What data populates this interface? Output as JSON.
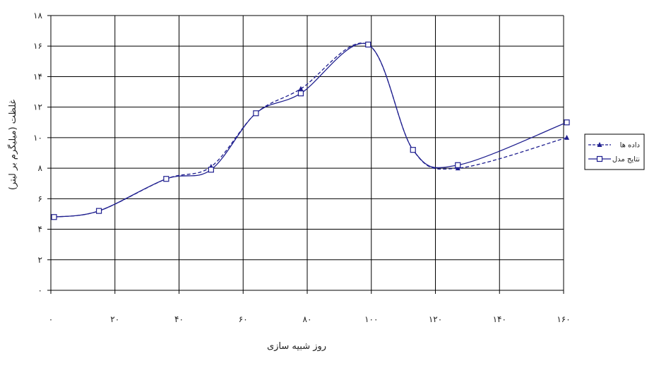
{
  "chart_data": {
    "type": "line",
    "xlabel": "روز شبیه سازی",
    "ylabel": "غلظت (میلیگرم بر لیتر)",
    "xlim": [
      0,
      160
    ],
    "ylim": [
      0,
      18
    ],
    "x_ticks": [
      "۰",
      "۲۰",
      "۴۰",
      "۶۰",
      "۸۰",
      "۱۰۰",
      "۱۲۰",
      "۱۴۰",
      "۱۶۰"
    ],
    "y_ticks": [
      "۰",
      "۲",
      "۴",
      "۶",
      "۸",
      "۱۰",
      "۱۲",
      "۱۴",
      "۱۶",
      "۱۸"
    ],
    "grid": true,
    "legend_position": "right",
    "series": [
      {
        "name": "داده ها",
        "style": "dashed",
        "marker": "triangle",
        "color": "#1f1f8f",
        "points": [
          [
            1,
            4.8
          ],
          [
            15,
            5.2
          ],
          [
            36,
            7.3
          ],
          [
            50,
            8.1
          ],
          [
            64,
            11.6
          ],
          [
            78,
            13.2
          ],
          [
            99,
            16.1
          ],
          [
            113,
            9.2
          ],
          [
            127,
            8.0
          ],
          [
            161,
            10.0
          ]
        ]
      },
      {
        "name": "نتایج مدل",
        "style": "solid",
        "marker": "square",
        "color": "#1f1f8f",
        "points": [
          [
            1,
            4.8
          ],
          [
            15,
            5.2
          ],
          [
            36,
            7.3
          ],
          [
            50,
            7.9
          ],
          [
            64,
            11.6
          ],
          [
            78,
            12.9
          ],
          [
            99,
            16.1
          ],
          [
            113,
            9.2
          ],
          [
            127,
            8.2
          ],
          [
            161,
            11.0
          ]
        ]
      }
    ]
  }
}
